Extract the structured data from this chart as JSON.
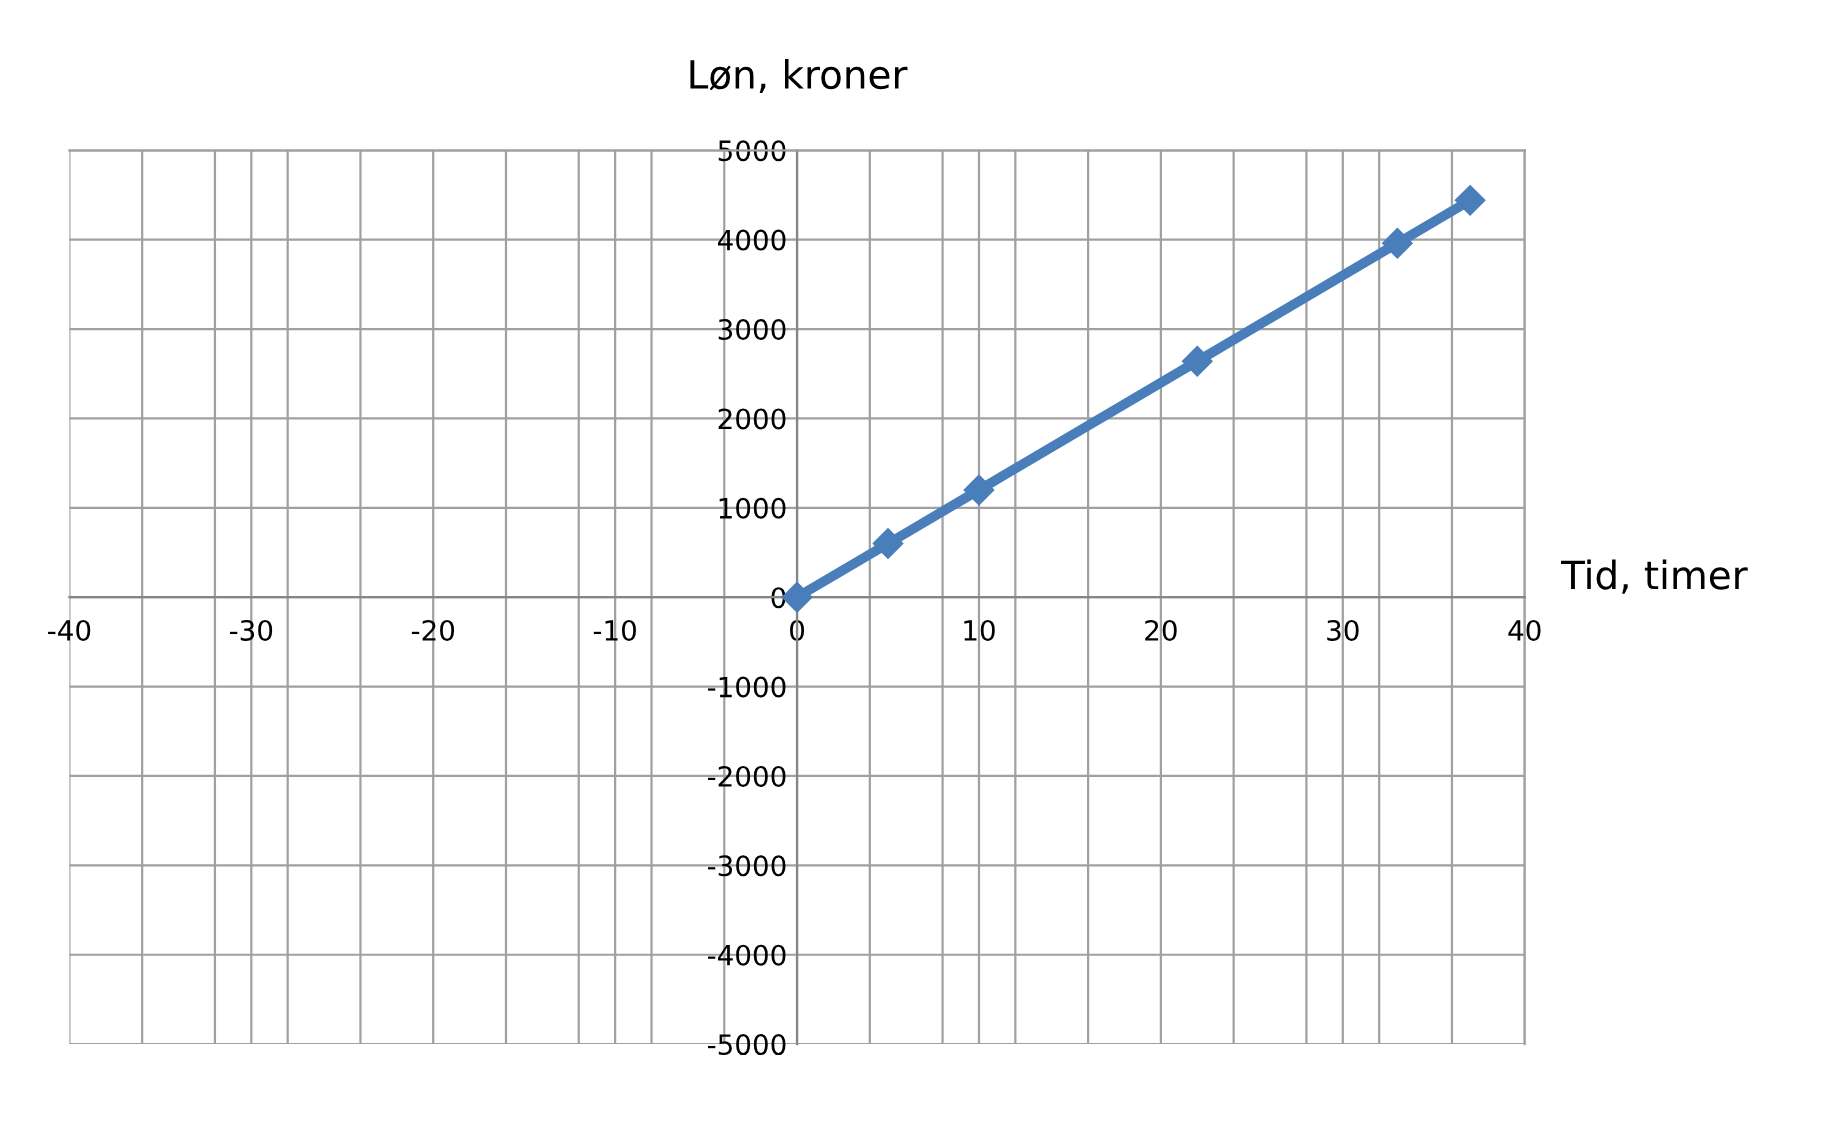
{
  "chart_data": {
    "type": "line",
    "xlabel": "Tid, timer",
    "ylabel": "Løn, kroner",
    "x": [
      0,
      5,
      10,
      22,
      33,
      37
    ],
    "series": [
      {
        "color": "#4a7ebb",
        "values": [
          0,
          600,
          1200,
          2640,
          3960,
          4440
        ]
      }
    ],
    "marker": "diamond",
    "line_style": "solid",
    "grid": true,
    "xlim": [
      -40,
      40
    ],
    "ylim": [
      -5000,
      5000
    ],
    "xticks": [
      -40,
      {
        "value": -36,
        "label": null
      },
      {
        "value": -32,
        "label": null
      },
      -30,
      {
        "value": -28,
        "label": null
      },
      {
        "value": -24,
        "label": null
      },
      -20,
      {
        "value": -16,
        "label": null
      },
      {
        "value": -12,
        "label": null
      },
      -10,
      {
        "value": -8,
        "label": null
      },
      {
        "value": -4,
        "label": null
      },
      0,
      {
        "value": 4,
        "label": null
      },
      {
        "value": 8,
        "label": null
      },
      10,
      {
        "value": 12,
        "label": null
      },
      {
        "value": 16,
        "label": null
      },
      20,
      {
        "value": 24,
        "label": null
      },
      {
        "value": 28,
        "label": null
      },
      30,
      {
        "value": 32,
        "label": null
      },
      {
        "value": 36,
        "label": null
      },
      40
    ],
    "yticks": [
      -5000,
      -4000,
      -3000,
      -2000,
      -1000,
      0,
      1000,
      2000,
      3000,
      4000,
      5000
    ]
  }
}
